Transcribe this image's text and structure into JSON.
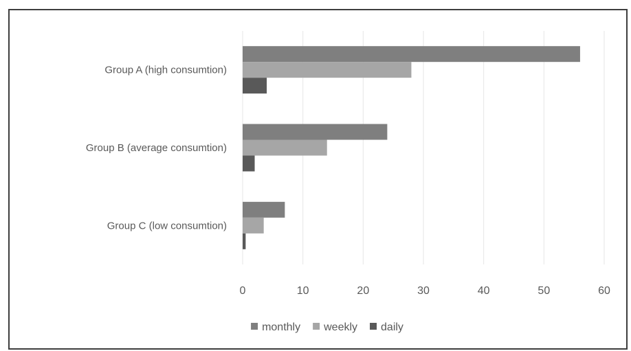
{
  "chart_data": {
    "type": "bar",
    "orientation": "horizontal",
    "title": "",
    "xlabel": "",
    "ylabel": "",
    "categories": [
      "Group A (high consumtion)",
      "Group B (average consumtion)",
      "Group C (low consumtion)"
    ],
    "series": [
      {
        "name": "monthly",
        "values": [
          56,
          24,
          7
        ],
        "color": "#7f7f7f"
      },
      {
        "name": "weekly",
        "values": [
          28,
          14,
          3.5
        ],
        "color": "#a6a6a6"
      },
      {
        "name": "daily",
        "values": [
          4,
          2,
          0.5
        ],
        "color": "#595959"
      }
    ],
    "xlim": [
      0,
      60
    ],
    "xticks": [
      "0",
      "10",
      "20",
      "30",
      "40",
      "50",
      "60"
    ],
    "grid": true,
    "legend_position": "bottom"
  }
}
